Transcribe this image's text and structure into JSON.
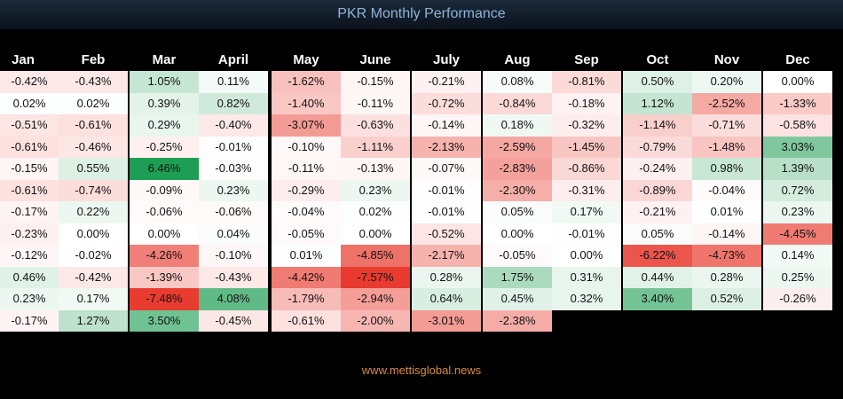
{
  "title": "PKR Monthly Performance",
  "footer": "www.mettisglobal.news",
  "chart_data": {
    "type": "heatmap",
    "title": "PKR Monthly Performance",
    "columns": [
      "Jan",
      "Feb",
      "Mar",
      "April",
      "May",
      "June",
      "July",
      "Aug",
      "Sep",
      "Oct",
      "Nov",
      "Dec"
    ],
    "rows": [
      [
        "-0.42%",
        "-0.43%",
        "1.05%",
        "0.11%",
        "-1.62%",
        "-0.15%",
        "-0.21%",
        "0.08%",
        "-0.81%",
        "0.50%",
        "0.20%",
        "0.00%"
      ],
      [
        "0.02%",
        "0.02%",
        "0.39%",
        "0.82%",
        "-1.40%",
        "-0.11%",
        "-0.72%",
        "-0.84%",
        "-0.18%",
        "1.12%",
        "-2.52%",
        "-1.33%"
      ],
      [
        "-0.51%",
        "-0.61%",
        "0.29%",
        "-0.40%",
        "-3.07%",
        "-0.63%",
        "-0.14%",
        "0.18%",
        "-0.32%",
        "-1.14%",
        "-0.71%",
        "-0.58%"
      ],
      [
        "-0.61%",
        "-0.46%",
        "-0.25%",
        "-0.01%",
        "-0.10%",
        "-1.11%",
        "-2.13%",
        "-2.59%",
        "-1.45%",
        "-0.79%",
        "-1.48%",
        "3.03%"
      ],
      [
        "-0.15%",
        "0.55%",
        "6.46%",
        "-0.03%",
        "-0.11%",
        "-0.13%",
        "-0.07%",
        "-2.83%",
        "-0.86%",
        "-0.24%",
        "0.98%",
        "1.39%"
      ],
      [
        "-0.61%",
        "-0.74%",
        "-0.09%",
        "0.23%",
        "-0.29%",
        "0.23%",
        "-0.01%",
        "-2.30%",
        "-0.31%",
        "-0.89%",
        "-0.04%",
        "0.72%"
      ],
      [
        "-0.17%",
        "0.22%",
        "-0.06%",
        "-0.06%",
        "-0.04%",
        "0.02%",
        "-0.01%",
        "0.05%",
        "0.17%",
        "-0.21%",
        "0.01%",
        "0.23%"
      ],
      [
        "-0.23%",
        "0.00%",
        "0.00%",
        "0.04%",
        "-0.05%",
        "0.00%",
        "-0.52%",
        "0.00%",
        "-0.01%",
        "0.05%",
        "-0.14%",
        "-4.45%"
      ],
      [
        "-0.12%",
        "-0.02%",
        "-4.26%",
        "-0.10%",
        "0.01%",
        "-4.85%",
        "-2.17%",
        "-0.05%",
        "0.00%",
        "-6.22%",
        "-4.73%",
        "0.14%"
      ],
      [
        "0.46%",
        "-0.42%",
        "-1.39%",
        "-0.43%",
        "-4.42%",
        "-7.57%",
        "0.28%",
        "1.75%",
        "0.31%",
        "0.44%",
        "0.28%",
        "0.25%"
      ],
      [
        "0.23%",
        "0.17%",
        "-7.48%",
        "4.08%",
        "-1.79%",
        "-2.94%",
        "0.64%",
        "0.45%",
        "0.32%",
        "3.40%",
        "0.52%",
        "-0.26%"
      ],
      [
        "-0.17%",
        "1.27%",
        "3.50%",
        "-0.45%",
        "-0.61%",
        "-2.00%",
        "-3.01%",
        "-2.38%",
        "",
        "",
        "",
        ""
      ]
    ],
    "colors": {
      "positive": "#1e9e54",
      "negative": "#e83a2e",
      "neutral": "#ffffff"
    }
  }
}
